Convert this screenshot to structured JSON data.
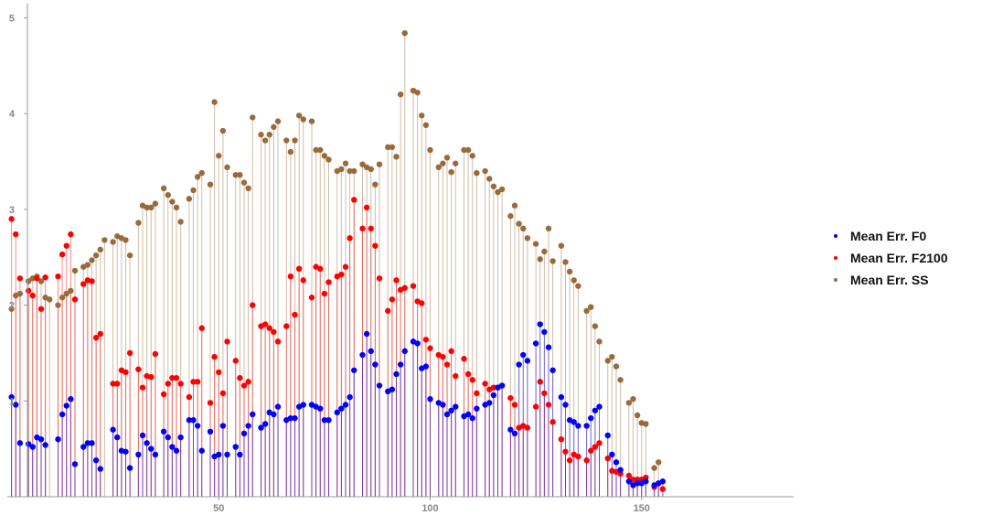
{
  "chart_data": {
    "type": "scatter",
    "style": "stem",
    "xlim": [
      0,
      186
    ],
    "ylim": [
      0,
      5.15
    ],
    "x_ticks": [
      50,
      100,
      150
    ],
    "y_ticks": [
      1,
      2,
      3,
      4,
      5
    ],
    "x_tick_labels": [
      "50",
      "100",
      "150"
    ],
    "y_tick_labels": [
      "1",
      "2",
      "3",
      "4",
      "5"
    ],
    "grid": false,
    "legend_position": "right",
    "series": [
      {
        "name": "Mean Err. SS",
        "color": "#9a6a3a",
        "values": [
          1.96,
          2.1,
          2.12,
          null,
          2.25,
          2.28,
          2.3,
          2.25,
          2.08,
          2.06,
          null,
          2.0,
          2.08,
          2.12,
          2.15,
          2.36,
          null,
          2.4,
          2.42,
          2.47,
          2.52,
          2.58,
          2.68,
          null,
          2.66,
          2.72,
          2.7,
          2.68,
          2.52,
          null,
          2.86,
          3.04,
          3.02,
          3.02,
          3.06,
          null,
          3.22,
          3.15,
          3.08,
          3.02,
          2.87,
          null,
          3.11,
          3.2,
          3.34,
          3.38,
          null,
          3.26,
          4.12,
          3.56,
          3.82,
          3.44,
          null,
          3.36,
          3.36,
          3.28,
          3.22,
          3.96,
          null,
          3.78,
          3.72,
          3.78,
          3.86,
          3.92,
          null,
          3.72,
          3.6,
          3.72,
          3.98,
          3.94,
          null,
          3.92,
          3.62,
          3.62,
          3.56,
          3.52,
          null,
          3.4,
          3.42,
          3.48,
          3.4,
          3.4,
          null,
          3.47,
          3.44,
          3.42,
          3.26,
          3.47,
          null,
          3.65,
          3.65,
          3.55,
          4.2,
          4.84,
          null,
          4.24,
          4.22,
          3.98,
          3.88,
          3.62,
          null,
          3.44,
          3.48,
          3.54,
          3.39,
          3.48,
          null,
          3.62,
          3.62,
          3.56,
          3.38,
          null,
          3.4,
          3.32,
          3.24,
          3.18,
          3.21,
          null,
          2.93,
          3.04,
          2.85,
          2.8,
          2.7,
          null,
          2.64,
          2.48,
          2.56,
          2.8,
          2.46,
          null,
          2.62,
          2.45,
          2.35,
          2.26,
          2.2,
          null,
          1.94,
          1.98,
          1.78,
          1.62,
          null,
          1.42,
          1.46,
          1.36,
          1.22,
          null,
          0.98,
          1.02,
          0.85,
          0.77,
          0.76,
          null,
          0.3,
          0.36
        ]
      },
      {
        "name": "Mean Err. F2100",
        "color": "#ff0000",
        "values": [
          2.9,
          2.74,
          2.28,
          null,
          2.15,
          2.1,
          2.28,
          1.96,
          2.29,
          null,
          null,
          2.3,
          2.53,
          2.62,
          2.74,
          2.06,
          null,
          2.22,
          2.26,
          2.25,
          1.66,
          1.7,
          null,
          null,
          1.18,
          1.18,
          1.32,
          1.3,
          1.5,
          null,
          1.33,
          1.14,
          1.26,
          1.25,
          1.49,
          null,
          1.07,
          1.18,
          1.24,
          1.24,
          1.18,
          null,
          1.04,
          1.2,
          1.2,
          1.76,
          null,
          0.98,
          1.46,
          1.3,
          1.08,
          1.62,
          null,
          1.42,
          1.24,
          1.16,
          1.2,
          2.0,
          null,
          1.78,
          1.8,
          1.76,
          1.72,
          1.62,
          null,
          1.78,
          2.3,
          1.9,
          2.38,
          2.26,
          null,
          2.08,
          2.4,
          2.38,
          2.12,
          2.24,
          null,
          2.3,
          2.32,
          2.4,
          2.7,
          3.1,
          null,
          2.8,
          3.02,
          2.8,
          2.62,
          2.28,
          null,
          1.94,
          2.06,
          2.26,
          2.16,
          2.18,
          null,
          2.2,
          2.04,
          2.02,
          1.64,
          1.55,
          null,
          1.48,
          1.46,
          1.38,
          1.52,
          1.26,
          null,
          1.44,
          1.28,
          1.22,
          1.08,
          null,
          1.18,
          1.12,
          1.14,
          1.14,
          1.16,
          null,
          1.03,
          0.96,
          0.72,
          0.74,
          0.72,
          null,
          0.94,
          1.2,
          1.08,
          0.96,
          0.78,
          null,
          0.6,
          0.47,
          0.38,
          0.44,
          0.42,
          null,
          0.38,
          0.48,
          0.52,
          0.56,
          null,
          0.4,
          0.27,
          0.26,
          0.24,
          null,
          0.22,
          0.18,
          0.18,
          0.18,
          0.2,
          null,
          0.1,
          0.14,
          0.08
        ]
      },
      {
        "name": "Mean Err. F0",
        "color": "#0000ff",
        "values": [
          1.04,
          0.96,
          0.56,
          null,
          0.55,
          0.52,
          0.62,
          0.6,
          0.54,
          null,
          null,
          0.6,
          0.86,
          0.95,
          1.02,
          0.34,
          null,
          0.52,
          0.56,
          0.56,
          0.38,
          0.29,
          null,
          null,
          0.7,
          0.62,
          0.48,
          0.47,
          0.3,
          null,
          0.44,
          0.64,
          0.56,
          0.5,
          0.44,
          null,
          0.68,
          0.62,
          0.52,
          0.48,
          0.62,
          null,
          0.8,
          0.8,
          0.74,
          0.48,
          null,
          0.68,
          0.42,
          0.44,
          0.74,
          0.44,
          null,
          0.52,
          0.44,
          0.66,
          0.74,
          0.86,
          null,
          0.72,
          0.76,
          0.88,
          0.86,
          0.94,
          null,
          0.8,
          0.82,
          0.82,
          0.94,
          0.96,
          null,
          0.96,
          0.94,
          0.92,
          0.8,
          0.8,
          null,
          0.88,
          0.92,
          0.96,
          1.04,
          1.32,
          null,
          1.48,
          1.7,
          1.52,
          1.38,
          1.16,
          null,
          1.1,
          1.12,
          1.28,
          1.38,
          1.52,
          null,
          1.62,
          1.6,
          1.34,
          1.36,
          1.02,
          null,
          0.98,
          0.96,
          0.86,
          0.9,
          0.94,
          null,
          0.84,
          0.86,
          0.82,
          0.92,
          null,
          0.96,
          0.98,
          1.06,
          1.14,
          1.16,
          null,
          0.7,
          0.66,
          1.38,
          1.48,
          1.42,
          null,
          1.6,
          1.8,
          1.72,
          1.56,
          1.32,
          null,
          1.04,
          0.96,
          0.8,
          0.78,
          0.74,
          null,
          0.74,
          0.82,
          0.9,
          0.94,
          null,
          0.64,
          0.44,
          0.36,
          0.28,
          null,
          0.16,
          0.12,
          0.14,
          0.14,
          0.16,
          null,
          0.12,
          0.14,
          0.16
        ]
      }
    ]
  }
}
